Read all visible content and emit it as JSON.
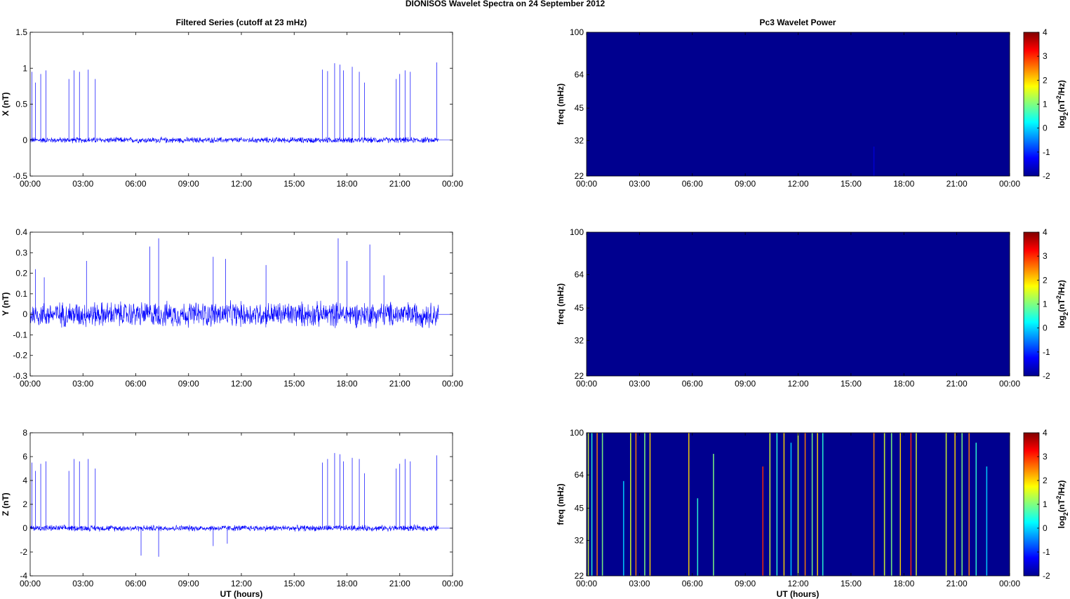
{
  "figure": {
    "title": "DIONISOS Wavelet Spectra on 24 September 2012",
    "left_title": "Filtered Series (cutoff at 23 mHz)",
    "right_title": "Pc3 Wavelet Power",
    "xlabel": "UT (hours)"
  },
  "chart_data": [
    {
      "type": "line",
      "ylabel": "X (nT)",
      "ylim": [
        -0.5,
        1.5
      ],
      "yticks": [
        -0.5,
        0,
        0.5,
        1,
        1.5
      ],
      "x_range_hours": [
        0,
        24
      ],
      "data_end_hours": 23.2,
      "xticks": [
        "00:00",
        "03:00",
        "06:00",
        "09:00",
        "12:00",
        "15:00",
        "18:00",
        "21:00",
        "00:00"
      ],
      "noise_amplitude": 0.04,
      "spike_groups": [
        {
          "x": [
            0.1,
            0.3,
            0.6,
            0.9
          ],
          "values": [
            0.95,
            0.8,
            0.92,
            0.97
          ]
        },
        {
          "x": [
            2.2,
            2.5,
            2.8,
            3.3,
            3.7
          ],
          "values": [
            0.85,
            0.97,
            0.95,
            0.98,
            0.85
          ]
        },
        {
          "x": [
            16.6,
            16.9,
            17.3,
            17.6,
            17.8,
            18.3,
            18.7,
            19.0
          ],
          "values": [
            0.98,
            0.96,
            1.07,
            1.05,
            0.97,
            1.02,
            0.95,
            0.8
          ]
        },
        {
          "x": [
            20.8,
            21.0,
            21.3,
            21.6,
            23.1
          ],
          "values": [
            0.85,
            0.92,
            0.97,
            0.95,
            1.08
          ]
        }
      ]
    },
    {
      "type": "line",
      "ylabel": "Y (nT)",
      "ylim": [
        -0.3,
        0.4
      ],
      "yticks": [
        -0.3,
        -0.2,
        -0.1,
        0,
        0.1,
        0.2,
        0.3,
        0.4
      ],
      "x_range_hours": [
        0,
        24
      ],
      "data_end_hours": 23.2,
      "xticks": [
        "00:00",
        "03:00",
        "06:00",
        "09:00",
        "12:00",
        "15:00",
        "18:00",
        "21:00",
        "00:00"
      ],
      "noise_amplitude": 0.06,
      "spike_groups": [
        {
          "x": [
            0.3,
            0.8,
            3.2,
            6.8,
            7.3,
            10.4,
            11.1,
            13.4
          ],
          "values": [
            0.22,
            0.18,
            0.26,
            0.33,
            0.37,
            0.28,
            0.27,
            0.24
          ]
        },
        {
          "x": [
            17.5,
            18.0,
            19.3,
            20.1
          ],
          "values": [
            0.37,
            0.26,
            0.34,
            0.19
          ]
        }
      ]
    },
    {
      "type": "line",
      "ylabel": "Z (nT)",
      "ylim": [
        -4,
        8
      ],
      "yticks": [
        -4,
        -2,
        0,
        2,
        4,
        6,
        8
      ],
      "x_range_hours": [
        0,
        24
      ],
      "data_end_hours": 23.2,
      "xticks": [
        "00:00",
        "03:00",
        "06:00",
        "09:00",
        "12:00",
        "15:00",
        "18:00",
        "21:00",
        "00:00"
      ],
      "noise_amplitude": 0.25,
      "spike_groups": [
        {
          "x": [
            0.1,
            0.3,
            0.6,
            0.9
          ],
          "values": [
            5.5,
            4.8,
            5.4,
            5.6
          ]
        },
        {
          "x": [
            2.2,
            2.5,
            2.8,
            3.3,
            3.7
          ],
          "values": [
            4.8,
            5.8,
            5.6,
            5.8,
            5.0
          ]
        },
        {
          "x": [
            6.3,
            7.3,
            10.4,
            11.2
          ],
          "values": [
            -2.3,
            -2.4,
            -1.5,
            -1.3
          ]
        },
        {
          "x": [
            16.6,
            16.9,
            17.3,
            17.6,
            17.8,
            18.3,
            18.7,
            19.0
          ],
          "values": [
            5.5,
            5.8,
            6.3,
            6.2,
            5.6,
            5.9,
            5.8,
            4.6
          ]
        },
        {
          "x": [
            20.8,
            21.0,
            21.3,
            21.6,
            23.1
          ],
          "values": [
            5.0,
            5.4,
            5.8,
            5.6,
            6.1
          ]
        }
      ]
    },
    {
      "type": "heatmap",
      "ylabel": "freq (mHz)",
      "yticks": [
        22,
        32,
        45,
        64,
        100
      ],
      "xticks": [
        "00:00",
        "03:00",
        "06:00",
        "09:00",
        "12:00",
        "15:00",
        "18:00",
        "21:00",
        "00:00"
      ],
      "colorbar": {
        "label": "log2(nT^2/Hz)",
        "range": [
          -2,
          4
        ],
        "ticks": [
          -2,
          -1,
          0,
          1,
          2,
          3,
          4
        ]
      },
      "background_value": -2,
      "streaks": [
        {
          "x": 16.3,
          "value": -1.5,
          "top_freq": 30
        }
      ]
    },
    {
      "type": "heatmap",
      "ylabel": "freq (mHz)",
      "yticks": [
        22,
        32,
        45,
        64,
        100
      ],
      "xticks": [
        "00:00",
        "03:00",
        "06:00",
        "09:00",
        "12:00",
        "15:00",
        "18:00",
        "21:00",
        "00:00"
      ],
      "colorbar": {
        "label": "log2(nT^2/Hz)",
        "range": [
          -2,
          4
        ],
        "ticks": [
          -2,
          -1,
          0,
          1,
          2,
          3,
          4
        ]
      },
      "background_value": -2,
      "streaks": []
    },
    {
      "type": "heatmap",
      "ylabel": "freq (mHz)",
      "yticks": [
        22,
        32,
        45,
        64,
        100
      ],
      "xticks": [
        "00:00",
        "03:00",
        "06:00",
        "09:00",
        "12:00",
        "15:00",
        "18:00",
        "21:00",
        "00:00"
      ],
      "colorbar": {
        "label": "log2(nT^2/Hz)",
        "range": [
          -2,
          4
        ],
        "ticks": [
          -2,
          -1,
          0,
          1,
          2,
          3,
          4
        ]
      },
      "background_value": -2,
      "streaks": [
        {
          "x": 0.1,
          "value": 1.5,
          "top_freq": 100
        },
        {
          "x": 0.3,
          "value": 0.5,
          "top_freq": 100
        },
        {
          "x": 0.6,
          "value": 2.5,
          "top_freq": 100
        },
        {
          "x": 0.9,
          "value": 1.0,
          "top_freq": 100
        },
        {
          "x": 2.1,
          "value": 0.0,
          "top_freq": 60
        },
        {
          "x": 2.5,
          "value": 1.5,
          "top_freq": 100
        },
        {
          "x": 2.8,
          "value": 2.5,
          "top_freq": 100
        },
        {
          "x": 3.3,
          "value": 1.0,
          "top_freq": 100
        },
        {
          "x": 3.6,
          "value": 2.0,
          "top_freq": 100
        },
        {
          "x": 5.8,
          "value": 2.0,
          "top_freq": 100
        },
        {
          "x": 6.3,
          "value": 0.5,
          "top_freq": 50
        },
        {
          "x": 7.2,
          "value": 1.0,
          "top_freq": 80
        },
        {
          "x": 10.0,
          "value": 3.0,
          "top_freq": 70
        },
        {
          "x": 10.4,
          "value": 1.5,
          "top_freq": 100
        },
        {
          "x": 10.8,
          "value": 0.5,
          "top_freq": 100
        },
        {
          "x": 11.2,
          "value": 2.0,
          "top_freq": 100
        },
        {
          "x": 11.6,
          "value": 0.0,
          "top_freq": 90
        },
        {
          "x": 12.0,
          "value": 1.5,
          "top_freq": 100
        },
        {
          "x": 12.4,
          "value": 2.5,
          "top_freq": 100
        },
        {
          "x": 12.8,
          "value": 1.0,
          "top_freq": 100
        },
        {
          "x": 13.1,
          "value": 2.0,
          "top_freq": 100
        },
        {
          "x": 13.4,
          "value": 0.5,
          "top_freq": 100
        },
        {
          "x": 16.3,
          "value": 2.5,
          "top_freq": 100
        },
        {
          "x": 16.9,
          "value": 1.5,
          "top_freq": 100
        },
        {
          "x": 17.3,
          "value": 1.0,
          "top_freq": 100
        },
        {
          "x": 17.8,
          "value": 2.0,
          "top_freq": 100
        },
        {
          "x": 18.4,
          "value": 3.0,
          "top_freq": 100
        },
        {
          "x": 18.7,
          "value": 1.5,
          "top_freq": 100
        },
        {
          "x": 20.4,
          "value": 1.5,
          "top_freq": 100
        },
        {
          "x": 20.9,
          "value": 2.0,
          "top_freq": 100
        },
        {
          "x": 21.3,
          "value": 1.0,
          "top_freq": 100
        },
        {
          "x": 21.7,
          "value": 2.5,
          "top_freq": 100
        },
        {
          "x": 22.1,
          "value": 0.5,
          "top_freq": 90
        },
        {
          "x": 22.7,
          "value": 0.0,
          "top_freq": 70
        }
      ]
    }
  ],
  "colors": {
    "series": "#0000ff",
    "heatmap_background": "#00008f"
  }
}
